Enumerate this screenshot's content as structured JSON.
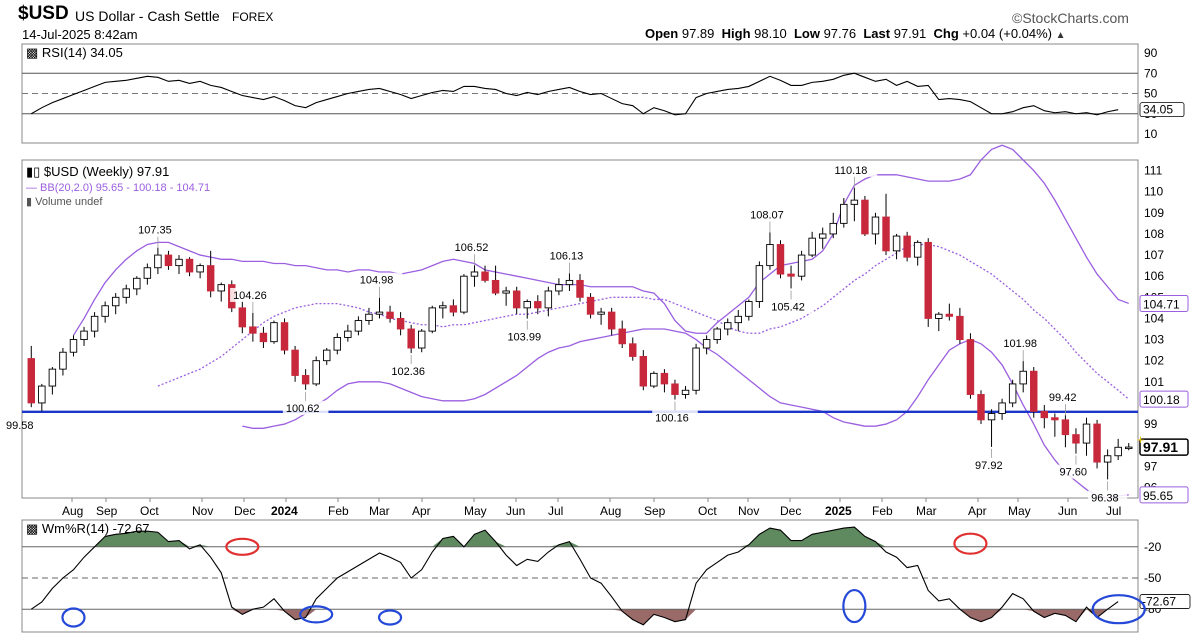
{
  "header": {
    "symbol": "$USD",
    "name": "US Dollar - Cash Settle",
    "exchange": "FOREX",
    "watermark": "©StockCharts.com",
    "datetime": "14-Jul-2025 8:42am",
    "quote": {
      "open_label": "Open",
      "open": "97.89",
      "high_label": "High",
      "high": "98.10",
      "low_label": "Low",
      "low": "97.76",
      "last_label": "Last",
      "last": "97.91",
      "chg_label": "Chg",
      "chg": "+0.04 (+0.04%)",
      "arrow": "up-arrow-icon"
    }
  },
  "rsi_panel": {
    "label": "RSI(14) 34.05",
    "ticks": [
      "90",
      "70",
      "50",
      "30",
      "10"
    ],
    "last_value": "34.05",
    "levels": [
      70,
      50,
      30
    ]
  },
  "price_panel": {
    "legend": [
      "$USD (Weekly) 97.91",
      "BB(20,2.0) 95.65 - 100.18 - 104.71",
      "Volume undef"
    ],
    "ticks": [
      "111",
      "110",
      "109",
      "108",
      "107",
      "106",
      "105",
      "104",
      "103",
      "102",
      "101",
      "100",
      "99",
      "98",
      "97",
      "96"
    ],
    "horizontal_line": {
      "value": 99.58,
      "label": "99.58",
      "color": "#1a35c8"
    },
    "price_annotations": [
      "107.35",
      "104.26",
      "100.62",
      "104.98",
      "102.36",
      "106.52",
      "103.99",
      "106.13",
      "100.16",
      "108.07",
      "105.42",
      "110.18",
      "101.98",
      "97.92",
      "99.42",
      "97.60",
      "96.38"
    ],
    "last_tags": {
      "upper": "104.71",
      "middle": "100.18",
      "last": "97.91",
      "lower": "95.65"
    }
  },
  "x_axis": {
    "labels": [
      "Aug",
      "Sep",
      "Oct",
      "Nov",
      "Dec",
      "2024",
      "Feb",
      "Mar",
      "Apr",
      "May",
      "Jun",
      "Jul",
      "Aug",
      "Sep",
      "Oct",
      "Nov",
      "Dec",
      "2025",
      "Feb",
      "Mar",
      "Apr",
      "May",
      "Jun",
      "Jul"
    ],
    "bold": [
      "2024",
      "2025"
    ]
  },
  "wr_panel": {
    "label": "Wm%R(14) -72.67",
    "ticks": [
      "-20",
      "-50",
      "-80"
    ],
    "last_value": "-72.67"
  },
  "colors": {
    "up": "#ffffff",
    "down": "#c8283c",
    "bollinger": "#9b5fe0",
    "overbought_fill": "#5f8a5f",
    "oversold_fill": "#9a6a68",
    "circle_red": "#e03030",
    "circle_blue": "#2448d8"
  },
  "chart_data": {
    "type": "candlestick",
    "title": "$USD US Dollar - Cash Settle FOREX",
    "timeframe": "Weekly",
    "ylim": [
      95.5,
      111.5
    ],
    "x_start": "Jul 2023",
    "x_end": "Jul 2025",
    "series": [
      {
        "name": "$USD (Weekly)",
        "ohlc": [
          [
            102.1,
            102.7,
            99.8,
            100.0
          ],
          [
            100.0,
            100.9,
            99.6,
            100.8
          ],
          [
            100.8,
            101.7,
            100.4,
            101.6
          ],
          [
            101.6,
            102.6,
            101.3,
            102.4
          ],
          [
            102.4,
            103.2,
            102.2,
            103.0
          ],
          [
            103.0,
            103.6,
            102.7,
            103.4
          ],
          [
            103.4,
            104.3,
            103.1,
            104.1
          ],
          [
            104.1,
            104.8,
            103.8,
            104.6
          ],
          [
            104.6,
            105.2,
            104.2,
            105.0
          ],
          [
            105.0,
            105.6,
            104.7,
            105.4
          ],
          [
            105.4,
            106.0,
            105.1,
            105.9
          ],
          [
            105.9,
            106.6,
            105.6,
            106.4
          ],
          [
            106.4,
            107.35,
            106.1,
            107.0
          ],
          [
            107.0,
            107.2,
            106.3,
            106.5
          ],
          [
            106.5,
            107.0,
            106.1,
            106.8
          ],
          [
            106.8,
            106.9,
            106.0,
            106.2
          ],
          [
            106.2,
            106.6,
            105.9,
            106.5
          ],
          [
            106.5,
            107.2,
            105.0,
            105.3
          ],
          [
            105.3,
            105.7,
            104.8,
            105.6
          ],
          [
            105.6,
            105.8,
            104.3,
            104.5
          ],
          [
            104.5,
            104.8,
            103.3,
            103.6
          ],
          [
            103.6,
            104.26,
            102.9,
            103.3
          ],
          [
            103.3,
            103.6,
            102.6,
            102.9
          ],
          [
            102.9,
            103.9,
            102.8,
            103.8
          ],
          [
            103.8,
            104.0,
            102.3,
            102.5
          ],
          [
            102.5,
            102.7,
            101.0,
            101.3
          ],
          [
            101.3,
            101.6,
            100.62,
            100.9
          ],
          [
            100.9,
            102.2,
            100.8,
            102.0
          ],
          [
            102.0,
            102.6,
            101.8,
            102.5
          ],
          [
            102.5,
            103.3,
            102.3,
            103.1
          ],
          [
            103.1,
            103.7,
            102.9,
            103.4
          ],
          [
            103.4,
            104.1,
            103.2,
            103.9
          ],
          [
            103.9,
            104.5,
            103.7,
            104.2
          ],
          [
            104.2,
            104.98,
            104.0,
            104.3
          ],
          [
            104.3,
            104.6,
            103.8,
            104.0
          ],
          [
            104.0,
            104.3,
            103.2,
            103.5
          ],
          [
            103.5,
            103.7,
            102.36,
            102.6
          ],
          [
            102.6,
            103.5,
            102.4,
            103.4
          ],
          [
            103.4,
            104.6,
            103.3,
            104.5
          ],
          [
            104.5,
            104.8,
            104.0,
            104.6
          ],
          [
            104.6,
            104.9,
            104.1,
            104.3
          ],
          [
            104.3,
            106.1,
            104.2,
            106.0
          ],
          [
            106.0,
            106.52,
            105.5,
            106.2
          ],
          [
            106.2,
            106.5,
            105.7,
            105.8
          ],
          [
            105.8,
            106.5,
            105.1,
            105.2
          ],
          [
            105.2,
            105.5,
            104.6,
            105.3
          ],
          [
            105.3,
            105.5,
            104.2,
            104.5
          ],
          [
            104.5,
            104.9,
            103.99,
            104.8
          ],
          [
            104.8,
            105.1,
            104.2,
            104.5
          ],
          [
            104.5,
            105.5,
            104.1,
            105.3
          ],
          [
            105.3,
            105.9,
            105.1,
            105.6
          ],
          [
            105.6,
            106.13,
            105.3,
            105.8
          ],
          [
            105.8,
            106.1,
            104.8,
            105.0
          ],
          [
            105.0,
            105.2,
            104.0,
            104.2
          ],
          [
            104.2,
            104.5,
            103.7,
            104.3
          ],
          [
            104.3,
            104.5,
            103.2,
            103.5
          ],
          [
            103.5,
            103.9,
            102.6,
            102.8
          ],
          [
            102.8,
            103.1,
            102.0,
            102.2
          ],
          [
            102.2,
            102.5,
            100.6,
            100.8
          ],
          [
            100.8,
            101.5,
            100.7,
            101.4
          ],
          [
            101.4,
            101.6,
            100.5,
            100.9
          ],
          [
            100.9,
            101.1,
            100.16,
            100.4
          ],
          [
            100.4,
            100.8,
            100.2,
            100.6
          ],
          [
            100.6,
            102.8,
            100.4,
            102.6
          ],
          [
            102.6,
            103.2,
            102.3,
            103.0
          ],
          [
            103.0,
            103.6,
            102.8,
            103.5
          ],
          [
            103.5,
            104.0,
            103.2,
            103.8
          ],
          [
            103.8,
            104.4,
            103.4,
            104.1
          ],
          [
            104.1,
            104.9,
            103.9,
            104.8
          ],
          [
            104.8,
            106.7,
            104.5,
            106.5
          ],
          [
            106.5,
            108.07,
            106.3,
            107.5
          ],
          [
            107.5,
            107.7,
            105.9,
            106.1
          ],
          [
            106.1,
            106.5,
            105.42,
            106.0
          ],
          [
            106.0,
            107.2,
            105.8,
            107.0
          ],
          [
            107.0,
            108.1,
            106.9,
            107.8
          ],
          [
            107.8,
            108.3,
            107.3,
            108.0
          ],
          [
            108.0,
            109.0,
            107.8,
            108.5
          ],
          [
            108.5,
            109.7,
            108.3,
            109.4
          ],
          [
            109.4,
            110.18,
            108.6,
            109.6
          ],
          [
            109.6,
            109.8,
            107.9,
            108.0
          ],
          [
            108.0,
            109.0,
            107.5,
            108.8
          ],
          [
            108.8,
            109.9,
            107.0,
            107.2
          ],
          [
            107.2,
            108.0,
            106.8,
            107.9
          ],
          [
            107.9,
            108.1,
            106.7,
            106.9
          ],
          [
            106.9,
            107.7,
            106.5,
            107.6
          ],
          [
            107.6,
            107.8,
            103.6,
            104.0
          ],
          [
            104.0,
            104.3,
            103.4,
            104.2
          ],
          [
            104.2,
            104.7,
            103.9,
            104.1
          ],
          [
            104.1,
            104.5,
            102.8,
            103.0
          ],
          [
            103.0,
            103.3,
            100.2,
            100.4
          ],
          [
            100.4,
            100.6,
            99.0,
            99.2
          ],
          [
            99.2,
            99.7,
            97.92,
            99.5
          ],
          [
            99.5,
            100.2,
            99.2,
            100.0
          ],
          [
            100.0,
            101.1,
            99.8,
            100.9
          ],
          [
            100.9,
            101.98,
            100.5,
            101.5
          ],
          [
            101.5,
            101.7,
            99.3,
            99.6
          ],
          [
            99.6,
            99.9,
            98.8,
            99.3
          ],
          [
            99.3,
            99.5,
            98.4,
            99.2
          ],
          [
            99.2,
            99.42,
            97.9,
            98.5
          ],
          [
            98.5,
            98.8,
            97.6,
            98.1
          ],
          [
            98.1,
            99.3,
            97.5,
            99.0
          ],
          [
            99.0,
            99.2,
            96.9,
            97.2
          ],
          [
            97.2,
            97.8,
            96.38,
            97.5
          ],
          [
            97.5,
            98.3,
            97.3,
            97.9
          ],
          [
            97.89,
            98.1,
            97.76,
            97.91
          ]
        ]
      },
      {
        "name": "BB upper",
        "values_note": "Bollinger upper band"
      },
      {
        "name": "BB middle"
      },
      {
        "name": "BB lower"
      }
    ],
    "bb_upper": [
      103.2,
      104.0,
      104.9,
      105.7,
      106.3,
      106.8,
      107.2,
      107.5,
      107.6,
      107.6,
      107.4,
      107.2,
      107.0,
      106.9,
      106.8,
      106.8,
      106.7,
      106.7,
      106.7,
      106.6,
      106.6,
      106.5,
      106.5,
      106.4,
      106.3,
      106.3,
      106.2,
      106.3,
      106.3,
      106.2,
      106.2,
      106.1,
      106.2,
      106.3,
      106.5,
      106.7,
      106.8,
      106.7,
      106.6,
      106.3,
      106.2,
      106.1,
      106.0,
      105.9,
      105.8,
      105.7,
      105.6,
      105.6,
      105.6,
      105.5,
      105.5,
      105.5,
      105.5,
      105.5,
      105.3,
      105.2,
      104.7,
      103.9,
      103.4,
      103.3,
      103.3,
      103.8,
      104.2,
      104.6,
      105.0,
      105.7,
      106.1,
      106.5,
      106.6,
      106.7,
      106.8,
      107.2,
      108.0,
      109.4,
      110.3,
      110.6,
      110.8,
      110.8,
      110.8,
      110.7,
      110.6,
      110.5,
      110.5,
      110.5,
      110.6,
      110.8,
      111.5,
      112.0,
      112.2,
      112.0,
      111.5,
      111.0,
      110.4,
      109.6,
      108.7,
      107.8,
      106.9,
      106.1,
      105.5,
      104.9,
      104.71
    ],
    "bb_middle": [
      100.8,
      101.0,
      101.2,
      101.4,
      101.6,
      101.9,
      102.2,
      102.6,
      103.0,
      103.4,
      103.8,
      104.1,
      104.3,
      104.5,
      104.6,
      104.7,
      104.7,
      104.7,
      104.6,
      104.5,
      104.3,
      104.2,
      104.0,
      103.9,
      103.8,
      103.7,
      103.7,
      103.6,
      103.7,
      103.7,
      103.8,
      103.9,
      104.0,
      104.1,
      104.2,
      104.2,
      104.3,
      104.4,
      104.5,
      104.6,
      104.7,
      104.8,
      104.9,
      105.0,
      105.0,
      105.0,
      105.0,
      104.9,
      104.9,
      104.7,
      104.5,
      104.3,
      104.1,
      103.9,
      103.6,
      103.4,
      103.3,
      103.3,
      103.5,
      103.6,
      103.8,
      104.0,
      104.3,
      104.6,
      105.0,
      105.4,
      105.8,
      106.1,
      106.5,
      106.8,
      107.1,
      107.4,
      107.5,
      107.5,
      107.4,
      107.2,
      107.0,
      106.7,
      106.4,
      106.1,
      105.7,
      105.3,
      104.9,
      104.4,
      104.0,
      103.5,
      103.0,
      102.4,
      101.9,
      101.4,
      101.0,
      100.6,
      100.18
    ],
    "bb_lower": [
      98.9,
      98.8,
      98.8,
      98.9,
      99.0,
      99.2,
      99.5,
      99.9,
      100.2,
      100.6,
      100.9,
      101.0,
      101.0,
      101.0,
      100.9,
      100.7,
      100.5,
      100.3,
      100.2,
      100.1,
      100.1,
      100.1,
      100.2,
      100.4,
      100.7,
      101.0,
      101.3,
      101.7,
      102.1,
      102.4,
      102.6,
      102.7,
      102.9,
      103.0,
      103.1,
      103.2,
      103.3,
      103.4,
      103.5,
      103.5,
      103.5,
      103.4,
      103.3,
      103.0,
      102.6,
      102.3,
      101.9,
      101.5,
      101.1,
      100.7,
      100.3,
      100.0,
      99.9,
      99.8,
      99.7,
      99.6,
      99.3,
      99.1,
      99.0,
      98.9,
      98.9,
      99.0,
      99.2,
      99.6,
      100.3,
      101.1,
      101.8,
      102.5,
      102.8,
      103.0,
      102.8,
      102.4,
      101.8,
      100.9,
      99.9,
      99.0,
      98.0,
      97.3,
      96.7,
      96.3,
      95.9,
      95.6,
      95.5,
      95.6,
      95.65
    ],
    "rsi": [
      30,
      36,
      41,
      45,
      49,
      53,
      57,
      61,
      62,
      63,
      65,
      67,
      66,
      62,
      63,
      60,
      62,
      58,
      56,
      52,
      48,
      46,
      44,
      47,
      43,
      38,
      36,
      41,
      44,
      47,
      50,
      52,
      54,
      55,
      52,
      49,
      45,
      48,
      51,
      53,
      52,
      57,
      57,
      55,
      54,
      50,
      48,
      51,
      49,
      52,
      54,
      56,
      52,
      49,
      50,
      45,
      40,
      38,
      30,
      36,
      33,
      29,
      30,
      46,
      50,
      52,
      54,
      55,
      57,
      62,
      67,
      63,
      58,
      58,
      61,
      62,
      64,
      68,
      70,
      66,
      62,
      64,
      58,
      62,
      57,
      58,
      44,
      45,
      44,
      42,
      36,
      30,
      30,
      32,
      36,
      38,
      33,
      31,
      32,
      30,
      31,
      29,
      32,
      34.05
    ],
    "williams_r": [
      -80,
      -73,
      -60,
      -50,
      -42,
      -30,
      -20,
      -10,
      -8,
      -7,
      -5,
      -5,
      -6,
      -15,
      -14,
      -22,
      -18,
      -30,
      -45,
      -78,
      -85,
      -80,
      -78,
      -70,
      -82,
      -90,
      -88,
      -70,
      -60,
      -50,
      -44,
      -38,
      -32,
      -26,
      -30,
      -35,
      -50,
      -42,
      -25,
      -12,
      -10,
      -20,
      -8,
      -4,
      -15,
      -28,
      -38,
      -32,
      -34,
      -25,
      -18,
      -15,
      -32,
      -50,
      -55,
      -68,
      -82,
      -90,
      -95,
      -85,
      -88,
      -92,
      -90,
      -55,
      -42,
      -35,
      -28,
      -25,
      -18,
      -8,
      -2,
      -4,
      -14,
      -14,
      -8,
      -6,
      -4,
      -2,
      -1,
      -10,
      -15,
      -25,
      -30,
      -40,
      -38,
      -62,
      -72,
      -70,
      -80,
      -88,
      -92,
      -88,
      -78,
      -65,
      -70,
      -82,
      -88,
      -84,
      -86,
      -92,
      -78,
      -88,
      -80,
      -72.67
    ]
  }
}
